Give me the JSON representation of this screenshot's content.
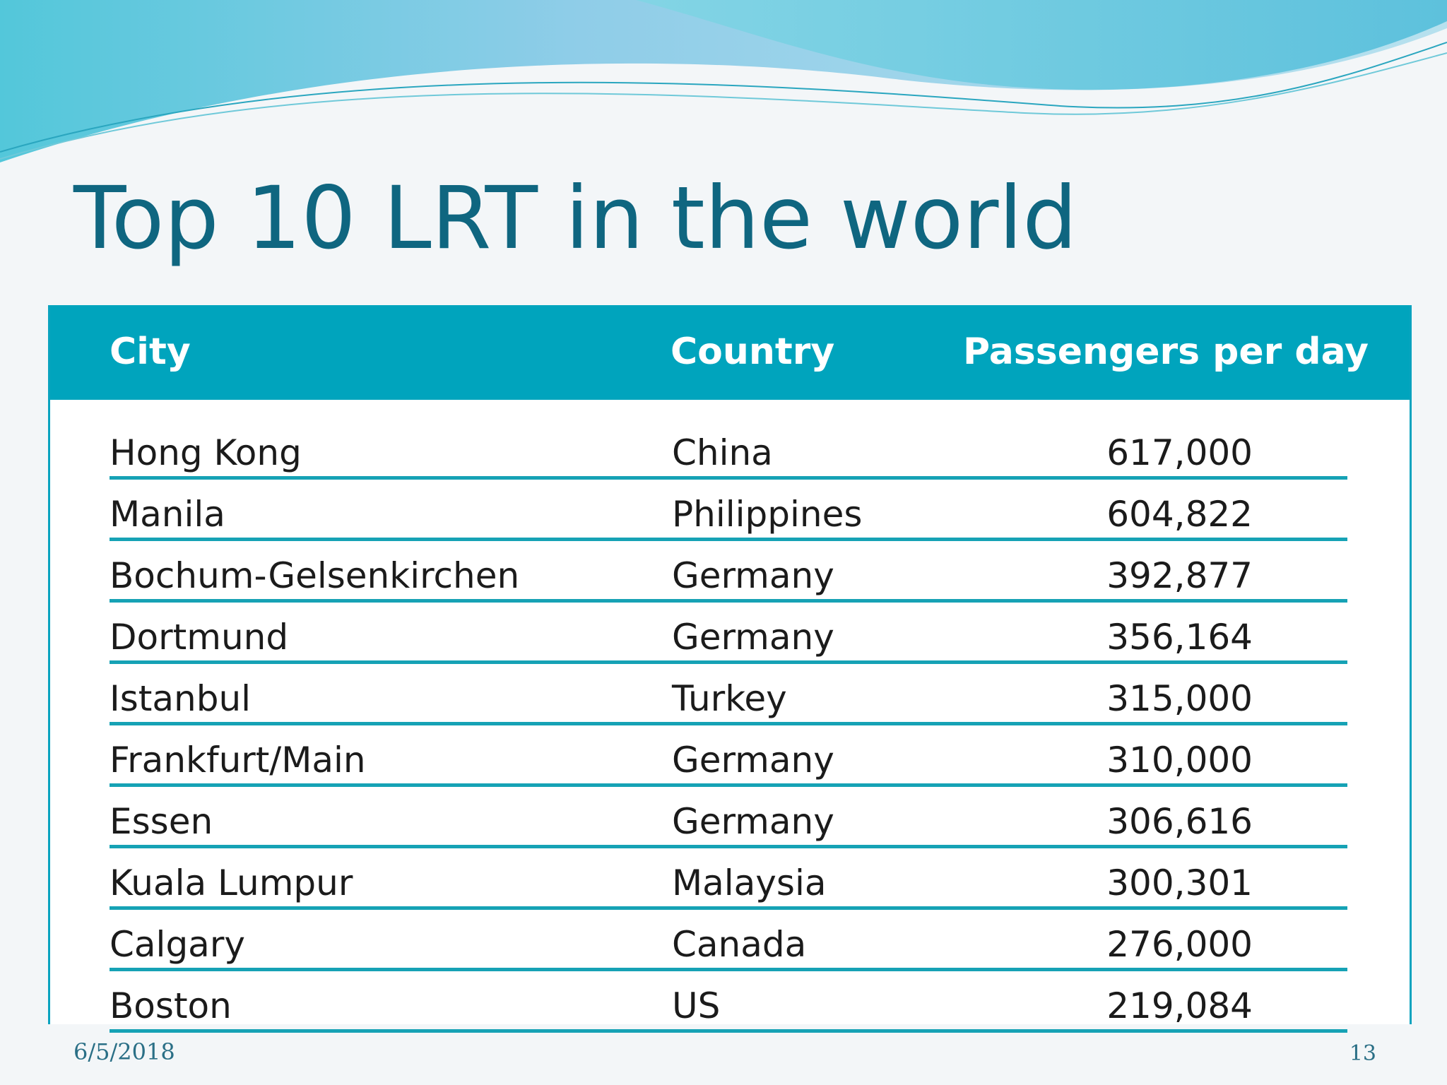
{
  "slide": {
    "title": "Top 10 LRT in the world",
    "date": "6/5/2018",
    "page_number": "13"
  },
  "table": {
    "headers": {
      "city": "City",
      "country": "Country",
      "passengers": "Passengers per day"
    },
    "rows": [
      {
        "city": "Hong Kong",
        "country": "China",
        "passengers": "617,000"
      },
      {
        "city": "Manila",
        "country": "Philippines",
        "passengers": "604,822"
      },
      {
        "city": "Bochum-Gelsenkirchen",
        "country": "Germany",
        "passengers": "392,877"
      },
      {
        "city": "Dortmund",
        "country": "Germany",
        "passengers": "356,164"
      },
      {
        "city": "Istanbul",
        "country": "Turkey",
        "passengers": "315,000"
      },
      {
        "city": "Frankfurt/Main",
        "country": "Germany",
        "passengers": "310,000"
      },
      {
        "city": "Essen",
        "country": "Germany",
        "passengers": "306,616"
      },
      {
        "city": "Kuala Lumpur",
        "country": "Malaysia",
        "passengers": "300,301"
      },
      {
        "city": "Calgary",
        "country": "Canada",
        "passengers": "276,000"
      },
      {
        "city": "Boston",
        "country": "US",
        "passengers": "219,084"
      }
    ]
  },
  "colors": {
    "title": "#0f6680",
    "header_bg": "#00a4bd",
    "row_rule": "#16a2b5",
    "wave_light": "#a9dbe8",
    "wave_dark": "#5cc4dc"
  }
}
